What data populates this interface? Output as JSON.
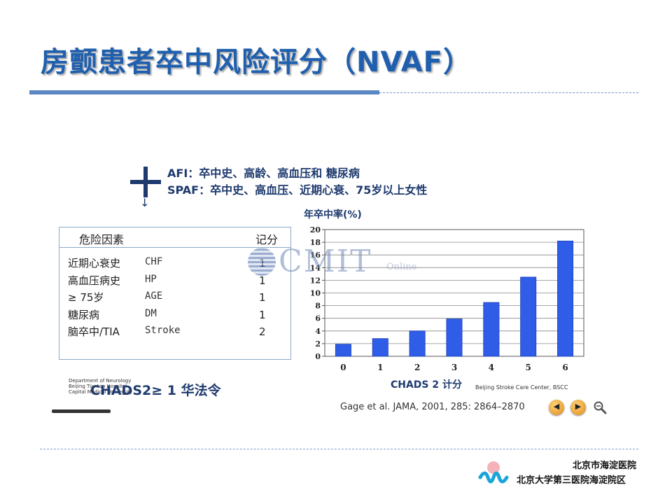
{
  "slide": {
    "title": "房颤患者卒中风险评分（NVAF）"
  },
  "studies": [
    {
      "key": "AFI：",
      "text": "卒中史、高龄、高血压和 糖尿病"
    },
    {
      "key": "SPAF：",
      "text": "卒中史、高血压、近期心衰、75岁以上女性"
    }
  ],
  "risk_table": {
    "header_factor": "危险因素",
    "header_score": "记分",
    "rows": [
      {
        "name": "近期心衰史",
        "abbr": "CHF",
        "score": "1"
      },
      {
        "name": "高血压病史",
        "abbr": "HP",
        "score": "1"
      },
      {
        "name": "≥ 75岁",
        "abbr": "AGE",
        "score": "1"
      },
      {
        "name": "糖尿病",
        "abbr": "DM",
        "score": "1"
      },
      {
        "name": "脑卒中/TIA",
        "abbr": "Stroke",
        "score": "2"
      }
    ]
  },
  "rule": "CHADS2≥ 1 华法令",
  "institution": [
    "Department of Neurology",
    "Beijing Tiantan Hospital",
    "Capital Medical University"
  ],
  "stroke_center": "Beijing Stroke Care Center, BSCC",
  "citation": "Gage et al. JAMA, 2001, 285: 2864–2870",
  "nav": {
    "prev": "◀",
    "next": "▶"
  },
  "watermark": {
    "main": "CMIT",
    "sub": "Online"
  },
  "hospital": {
    "line1": "北京市海淀医院",
    "line2": "北京大学第三医院海淀院区"
  },
  "colors": {
    "title": "#1f5fae",
    "bar": "#2f5de8",
    "accent_line": "#5b86c2"
  },
  "icons": {
    "plus": "plus-icon",
    "arrow": "arrow-down-icon",
    "zoom": "zoom-icon"
  },
  "chart_data": {
    "type": "bar",
    "title": "年卒中率(%)",
    "xlabel": "CHADS 2 计分",
    "ylabel": "",
    "categories": [
      "0",
      "1",
      "2",
      "3",
      "4",
      "5",
      "6"
    ],
    "values": [
      1.9,
      2.8,
      4.0,
      5.9,
      8.5,
      12.5,
      18.2
    ],
    "ylim": [
      0,
      20
    ],
    "yticks": [
      0,
      2,
      4,
      6,
      8,
      10,
      12,
      14,
      16,
      18,
      20
    ],
    "grid": true,
    "legend": "none"
  }
}
